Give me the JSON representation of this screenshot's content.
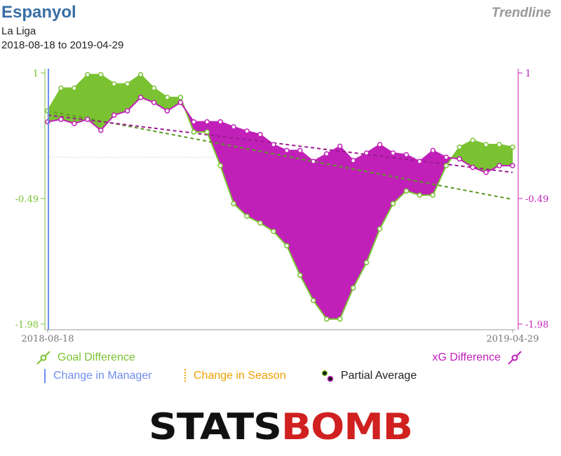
{
  "header": {
    "team": "Espanyol",
    "league": "La Liga",
    "date_range": "2018-08-18 to 2019-04-29",
    "badge": "Trendline"
  },
  "legend": {
    "goal_difference": "Goal Difference",
    "xg_difference": "xG Difference",
    "change_in_manager": "Change in Manager",
    "change_in_season": "Change in Season",
    "partial_average": "Partial Average"
  },
  "brand": {
    "logo_text": "STATSBOMB"
  },
  "colors": {
    "goal_difference": "#7ac231",
    "xg_difference": "#c020b8",
    "manager": "#6e8ef0",
    "season": "#f0a000",
    "axis_left": "#7ac231",
    "axis_right": "#c020b8"
  },
  "chart_data": {
    "type": "line",
    "x_start": "2018-08-18",
    "x_end": "2019-04-29",
    "xlabel_ticks": [
      "2018-08-18",
      "2019-04-29"
    ],
    "yticks": [
      1,
      -0.49,
      -1.98
    ],
    "ylim": [
      -1.98,
      1
    ],
    "reference_line": 0.0,
    "manager_change_at": "2018-08-18",
    "series": [
      {
        "name": "Goal Difference",
        "axis": "left",
        "values": [
          0.55,
          0.82,
          0.82,
          0.98,
          0.98,
          0.87,
          0.87,
          0.98,
          0.82,
          0.71,
          0.71,
          0.3,
          0.3,
          -0.1,
          -0.55,
          -0.7,
          -0.78,
          -0.88,
          -1.05,
          -1.4,
          -1.7,
          -1.92,
          -1.92,
          -1.55,
          -1.25,
          -0.85,
          -0.55,
          -0.4,
          -0.45,
          -0.45,
          -0.1,
          0.12,
          0.2,
          0.15,
          0.15,
          0.12
        ]
      },
      {
        "name": "xG Difference",
        "axis": "right",
        "values": [
          0.42,
          0.45,
          0.4,
          0.45,
          0.32,
          0.5,
          0.55,
          0.71,
          0.65,
          0.55,
          0.65,
          0.42,
          0.42,
          0.42,
          0.36,
          0.31,
          0.27,
          0.15,
          0.08,
          0.08,
          -0.05,
          0.04,
          0.13,
          -0.04,
          0.05,
          0.15,
          0.05,
          0.03,
          -0.05,
          0.08,
          0.0,
          -0.02,
          -0.12,
          -0.18,
          -0.1,
          -0.1
        ]
      }
    ],
    "trendlines": [
      {
        "series": "Goal Difference",
        "start": 0.55,
        "end": -0.5
      },
      {
        "series": "xG Difference",
        "start": 0.5,
        "end": -0.18
      }
    ]
  }
}
